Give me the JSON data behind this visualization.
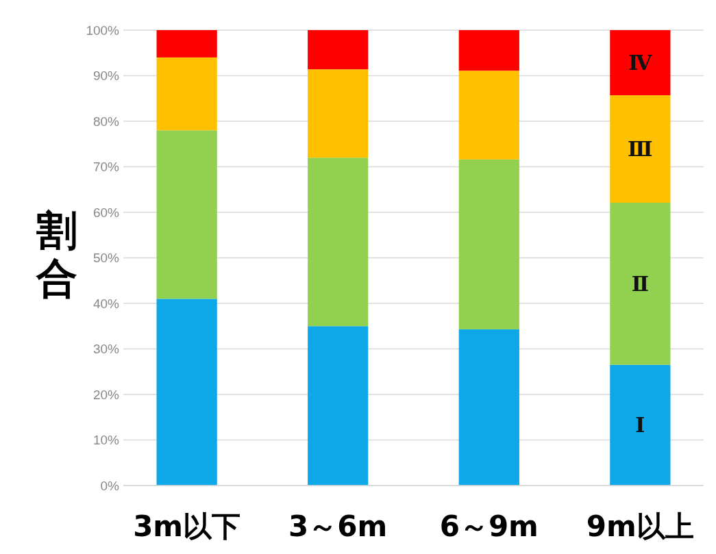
{
  "chart_data": {
    "type": "bar",
    "stacked": true,
    "ylabel": "割合",
    "categories": [
      "3m以下",
      "3～6m",
      "6～9m",
      "9m以上"
    ],
    "series": [
      {
        "name": "Ⅰ",
        "color": "#0ea8e8",
        "values": [
          41,
          35,
          34.3,
          26.5
        ]
      },
      {
        "name": "Ⅱ",
        "color": "#92d050",
        "values": [
          37,
          37,
          37.3,
          35.6
        ]
      },
      {
        "name": "Ⅲ",
        "color": "#ffc000",
        "values": [
          16,
          19.4,
          19.5,
          23.6
        ]
      },
      {
        "name": "Ⅳ",
        "color": "#ff0000",
        "values": [
          6,
          8.6,
          8.9,
          14.3
        ]
      }
    ],
    "ylim": [
      0,
      100
    ],
    "yticks": [
      {
        "value": 0,
        "label": "0%"
      },
      {
        "value": 10,
        "label": "10%"
      },
      {
        "value": 20,
        "label": "20%"
      },
      {
        "value": 30,
        "label": "30%"
      },
      {
        "value": 40,
        "label": "40%"
      },
      {
        "value": 50,
        "label": "50%"
      },
      {
        "value": 60,
        "label": "60%"
      },
      {
        "value": 70,
        "label": "70%"
      },
      {
        "value": 80,
        "label": "80%"
      },
      {
        "value": 90,
        "label": "90%"
      },
      {
        "value": 100,
        "label": "100%"
      }
    ],
    "grid": "y"
  }
}
